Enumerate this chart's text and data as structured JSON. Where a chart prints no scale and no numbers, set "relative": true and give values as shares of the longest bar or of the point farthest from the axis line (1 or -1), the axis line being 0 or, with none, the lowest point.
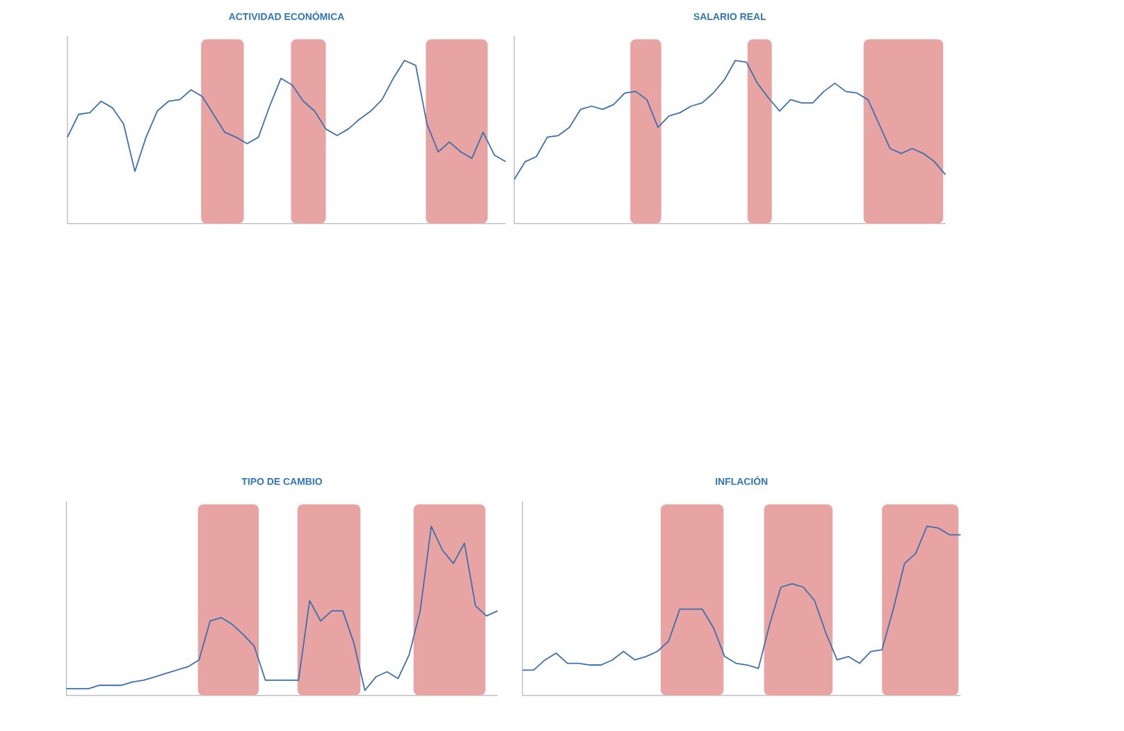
{
  "chart_data": [
    {
      "type": "line",
      "title": "ACTIVIDAD ECONÓMICA",
      "relative": true,
      "categories": [
        null,
        null,
        null,
        null,
        null,
        null,
        null,
        null,
        null,
        null,
        null,
        null,
        null,
        null,
        null,
        null,
        null,
        null,
        null,
        null,
        null,
        null,
        null,
        null,
        null,
        null,
        null,
        null,
        null,
        null,
        null,
        null,
        null,
        null,
        null,
        null,
        null,
        null,
        null,
        null
      ],
      "series": [
        {
          "color": "#3a6fb0",
          "values": [
            0.53,
            0.67,
            0.68,
            0.75,
            0.71,
            0.61,
            0.32,
            0.53,
            0.69,
            0.75,
            0.76,
            0.82,
            0.78,
            0.67,
            0.56,
            0.53,
            0.49,
            0.53,
            0.72,
            0.89,
            0.85,
            0.75,
            0.69,
            0.58,
            0.54,
            0.58,
            0.64,
            0.69,
            0.76,
            0.89,
            1,
            0.97,
            0.61,
            0.44,
            0.5,
            0.44,
            0.4,
            0.56,
            0.42,
            0.38
          ]
        }
      ]
    },
    {
      "type": "line",
      "title": "SALARIO REAL",
      "relative": true,
      "categories": [
        null,
        null,
        null,
        null,
        null,
        null,
        null,
        null,
        null,
        null,
        null,
        null,
        null,
        null,
        null,
        null,
        null,
        null,
        null,
        null,
        null,
        null,
        null,
        null,
        null,
        null,
        null,
        null,
        null,
        null,
        null,
        null,
        null,
        null,
        null,
        null,
        null,
        null,
        null,
        null
      ],
      "series": [
        {
          "color": "#3a6fb0",
          "values": [
            0.27,
            0.38,
            0.41,
            0.53,
            0.54,
            0.59,
            0.7,
            0.72,
            0.7,
            0.73,
            0.8,
            0.81,
            0.76,
            0.59,
            0.66,
            0.68,
            0.72,
            0.74,
            0.8,
            0.88,
            1,
            0.99,
            0.86,
            0.77,
            0.69,
            0.76,
            0.74,
            0.74,
            0.81,
            0.86,
            0.81,
            0.8,
            0.76,
            0.61,
            0.46,
            0.43,
            0.46,
            0.43,
            0.38,
            0.3
          ]
        }
      ]
    },
    {
      "type": "line",
      "title": "TIPO DE CAMBIO",
      "relative": true,
      "categories": [
        null,
        null,
        null,
        null,
        null,
        null,
        null,
        null,
        null,
        null,
        null,
        null,
        null,
        null,
        null,
        null,
        null,
        null,
        null,
        null,
        null,
        null,
        null,
        null,
        null,
        null,
        null,
        null,
        null,
        null,
        null,
        null,
        null,
        null,
        null,
        null,
        null,
        null,
        null,
        null
      ],
      "series": [
        {
          "color": "#3a6fb0",
          "values": [
            0.04,
            0.04,
            0.04,
            0.06,
            0.06,
            0.06,
            0.08,
            0.09,
            0.11,
            0.13,
            0.15,
            0.17,
            0.21,
            0.44,
            0.46,
            0.42,
            0.36,
            0.29,
            0.09,
            0.09,
            0.09,
            0.09,
            0.56,
            0.44,
            0.5,
            0.5,
            0.31,
            0.03,
            0.11,
            0.14,
            0.1,
            0.24,
            0.5,
            1,
            0.86,
            0.78,
            0.9,
            0.53,
            0.47,
            0.5
          ]
        }
      ]
    },
    {
      "type": "line",
      "title": "INFLACIÓN",
      "relative": true,
      "categories": [
        null,
        null,
        null,
        null,
        null,
        null,
        null,
        null,
        null,
        null,
        null,
        null,
        null,
        null,
        null,
        null,
        null,
        null,
        null,
        null,
        null,
        null,
        null,
        null,
        null,
        null,
        null,
        null,
        null,
        null,
        null,
        null,
        null,
        null,
        null,
        null,
        null,
        null,
        null,
        null
      ],
      "series": [
        {
          "color": "#3a6fb0",
          "values": [
            0.15,
            0.15,
            0.21,
            0.25,
            0.19,
            0.19,
            0.18,
            0.18,
            0.21,
            0.26,
            0.21,
            0.23,
            0.26,
            0.32,
            0.51,
            0.51,
            0.51,
            0.4,
            0.23,
            0.19,
            0.18,
            0.16,
            0.42,
            0.64,
            0.66,
            0.64,
            0.56,
            0.37,
            0.21,
            0.23,
            0.19,
            0.26,
            0.27,
            0.51,
            0.78,
            0.84,
            1,
            0.99,
            0.95,
            0.95
          ]
        }
      ]
    }
  ]
}
